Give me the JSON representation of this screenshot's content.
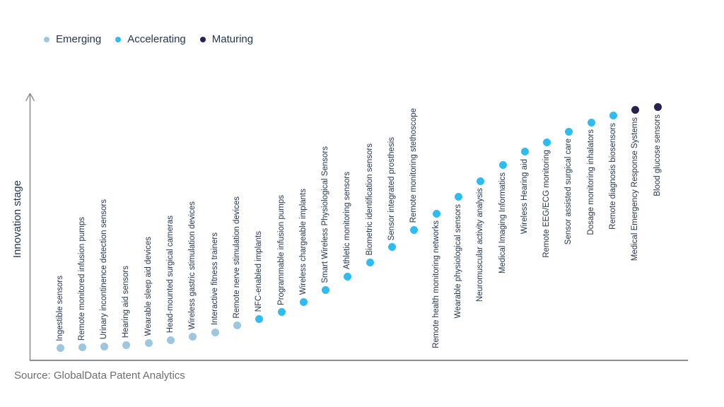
{
  "legend": {
    "items": [
      {
        "label": "Emerging",
        "stage": "emerging",
        "color": "#9cc7de"
      },
      {
        "label": "Accelerating",
        "stage": "accelerating",
        "color": "#2fbcf2"
      },
      {
        "label": "Maturing",
        "stage": "maturing",
        "color": "#2a2153"
      }
    ]
  },
  "stage_colors": {
    "emerging": "#9cc7de",
    "accelerating": "#2fbcf2",
    "maturing": "#2a2153"
  },
  "source": "Source: GlobalData Patent Analytics",
  "chart_data": {
    "type": "scatter",
    "title": "",
    "xlabel": "",
    "ylabel": "Innovation stage",
    "ylim": [
      0,
      1
    ],
    "legend_position": "top-left",
    "grid": false,
    "stages": [
      "Emerging",
      "Accelerating",
      "Maturing"
    ],
    "points": [
      {
        "rank": 1,
        "label": "Ingestible sensors",
        "stage": "emerging",
        "value": 0.05
      },
      {
        "rank": 2,
        "label": "Remote monitored infusion pumps",
        "stage": "emerging",
        "value": 0.052
      },
      {
        "rank": 3,
        "label": "Urinary incontinence detection sensors",
        "stage": "emerging",
        "value": 0.055
      },
      {
        "rank": 4,
        "label": "Hearing aid sensors",
        "stage": "emerging",
        "value": 0.06
      },
      {
        "rank": 5,
        "label": "Wearable sleep aid devices",
        "stage": "emerging",
        "value": 0.07
      },
      {
        "rank": 6,
        "label": "Head-mounted surgical cameras",
        "stage": "emerging",
        "value": 0.08
      },
      {
        "rank": 7,
        "label": "Wireless gastric stimulation devices",
        "stage": "emerging",
        "value": 0.092
      },
      {
        "rank": 8,
        "label": "Interactive fitness trainers",
        "stage": "emerging",
        "value": 0.11
      },
      {
        "rank": 9,
        "label": "Remote nerve stimulation devices",
        "stage": "emerging",
        "value": 0.135
      },
      {
        "rank": 10,
        "label": "NFC-enabled implants",
        "stage": "accelerating",
        "value": 0.16
      },
      {
        "rank": 11,
        "label": "Programmable infusion pumps",
        "stage": "accelerating",
        "value": 0.186
      },
      {
        "rank": 12,
        "label": "Wireless chargeable implants",
        "stage": "accelerating",
        "value": 0.226
      },
      {
        "rank": 13,
        "label": "Smart Wireless Physiological Sensors",
        "stage": "accelerating",
        "value": 0.27
      },
      {
        "rank": 14,
        "label": "Athletic monitoring sensors",
        "stage": "accelerating",
        "value": 0.323
      },
      {
        "rank": 15,
        "label": "Biometric identification sensors",
        "stage": "accelerating",
        "value": 0.377
      },
      {
        "rank": 16,
        "label": "Sensor integrated prosthesis",
        "stage": "accelerating",
        "value": 0.434
      },
      {
        "rank": 17,
        "label": "Remote monitoring stethoscope",
        "stage": "accelerating",
        "value": 0.501
      },
      {
        "rank": 18,
        "label": "Remote health monitoring networks",
        "stage": "accelerating",
        "value": 0.563
      },
      {
        "rank": 19,
        "label": "Wearable physiological sensors",
        "stage": "accelerating",
        "value": 0.626
      },
      {
        "rank": 20,
        "label": "Neuromuscular activity analysis",
        "stage": "accelerating",
        "value": 0.687
      },
      {
        "rank": 21,
        "label": "Medical Imaging Informatics",
        "stage": "accelerating",
        "value": 0.747
      },
      {
        "rank": 22,
        "label": "Wireless Hearing aid",
        "stage": "accelerating",
        "value": 0.798
      },
      {
        "rank": 23,
        "label": "Remote EEG/ECG monitoring",
        "stage": "accelerating",
        "value": 0.833
      },
      {
        "rank": 24,
        "label": "Sensor assisted surgical care",
        "stage": "accelerating",
        "value": 0.876
      },
      {
        "rank": 25,
        "label": "Dosage monitoring inhalators",
        "stage": "accelerating",
        "value": 0.911
      },
      {
        "rank": 26,
        "label": "Remote diagnosis biosensors",
        "stage": "accelerating",
        "value": 0.936
      },
      {
        "rank": 27,
        "label": "Medical Emergency Response Systems",
        "stage": "maturing",
        "value": 0.957
      },
      {
        "rank": 28,
        "label": "Blood glucose sensors",
        "stage": "maturing",
        "value": 0.968
      }
    ]
  }
}
